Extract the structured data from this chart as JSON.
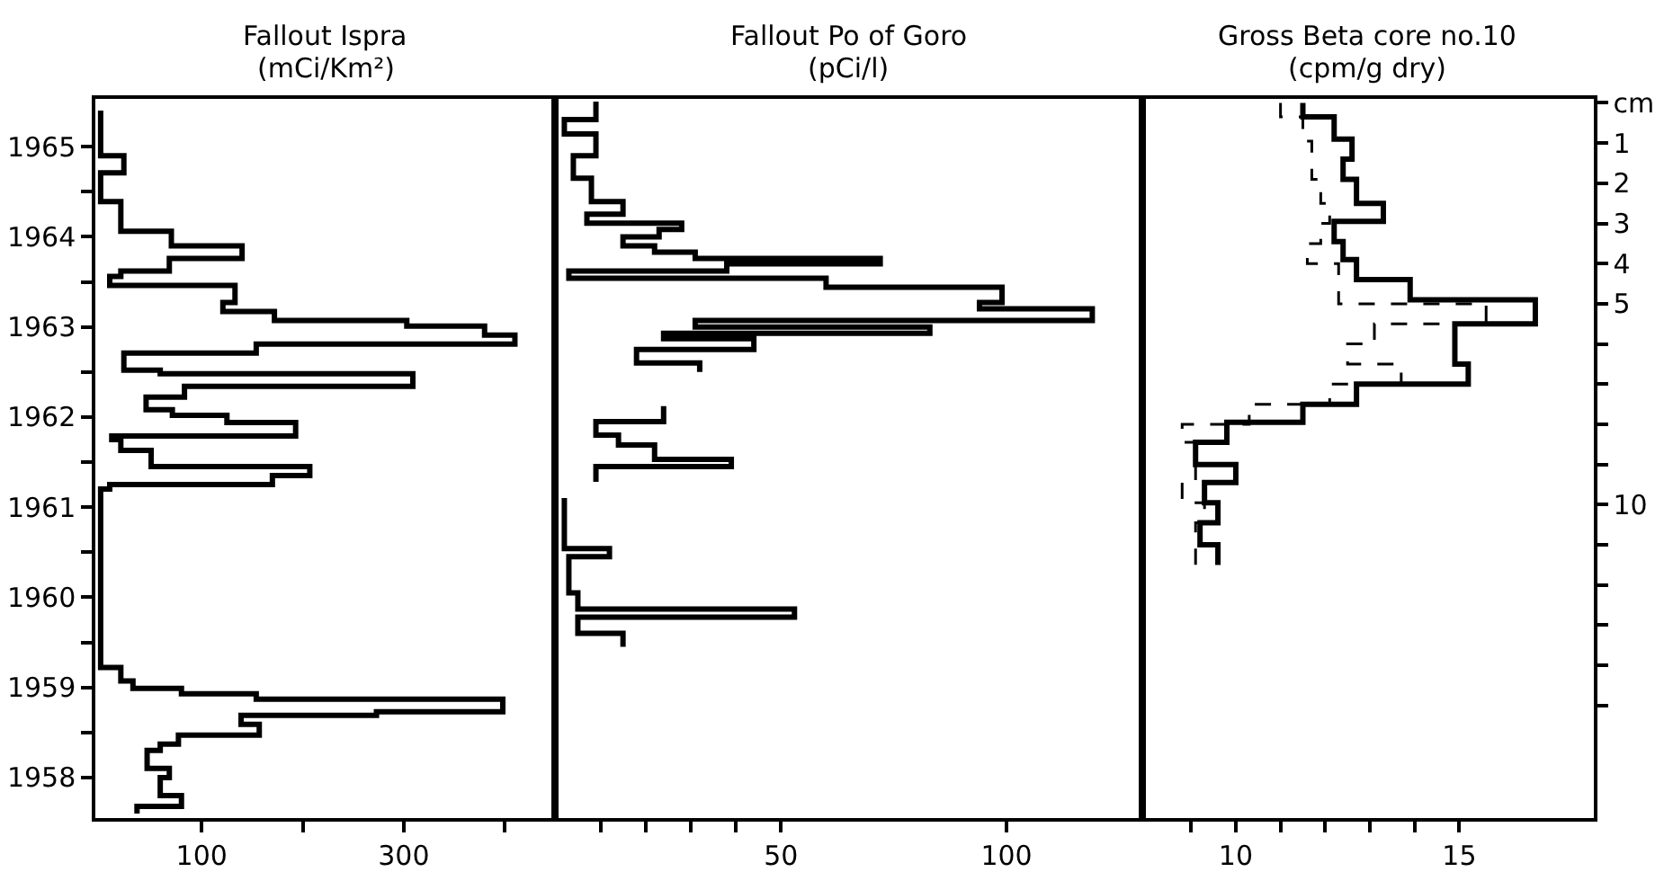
{
  "chart_data": [
    {
      "type": "step",
      "title": "Fallout Ispra",
      "subtitle": "(mCi/Km²)",
      "grid": false,
      "xlim": [
        -5,
        450
      ],
      "xticks": [
        100,
        {
          "value": 200,
          "label": null
        },
        300,
        {
          "value": 400,
          "label": null
        }
      ],
      "ylim": [
        1958.05,
        1966.03
      ],
      "yticks": [
        {
          "value": 1958.5,
          "label": "1958"
        },
        {
          "value": 1959,
          "label": null
        },
        {
          "value": 1959.5,
          "label": "1959"
        },
        {
          "value": 1960,
          "label": null
        },
        {
          "value": 1960.5,
          "label": "1960"
        },
        {
          "value": 1961,
          "label": null
        },
        {
          "value": 1961.5,
          "label": "1961"
        },
        {
          "value": 1962,
          "label": null
        },
        {
          "value": 1962.5,
          "label": "1962"
        },
        {
          "value": 1963,
          "label": null
        },
        {
          "value": 1963.5,
          "label": "1963"
        },
        {
          "value": 1964,
          "label": null
        },
        {
          "value": 1964.5,
          "label": "1964"
        },
        {
          "value": 1965,
          "label": null
        },
        {
          "value": 1965.5,
          "label": "1965"
        }
      ],
      "series": [
        {
          "color": "#000000",
          "line_style": "solid",
          "values": [
            1965.9,
            1965.4,
            1965.21,
            1964.89,
            1964.56,
            1964.4,
            1964.26,
            1964.12,
            1964.06,
            1963.96,
            1963.77,
            1963.67,
            1963.57,
            1963.51,
            1963.41,
            1963.31,
            1963.21,
            1963.02,
            1962.98,
            1962.84,
            1962.72,
            1962.58,
            1962.52,
            1962.44,
            1962.29,
            1962.25,
            1962.13,
            1961.95,
            1961.85,
            1961.75,
            1961.7,
            1959.72,
            1959.57,
            1959.49,
            1959.43,
            1959.37,
            1959.23,
            1959.19,
            1959.09,
            1958.97,
            1958.87,
            1958.8,
            1958.6,
            1958.5,
            1958.3,
            1958.18,
            1958.1
          ],
          "x": [
            0,
            23,
            0,
            20,
            70,
            140,
            68,
            20,
            9,
            133,
            121,
            172,
            303,
            380,
            410,
            154,
            23,
            59,
            309,
            83,
            45,
            71,
            125,
            193,
            11,
            20,
            50,
            207,
            170,
            9,
            0,
            20,
            32,
            80,
            154,
            398,
            273,
            139,
            157,
            77,
            59,
            46,
            68,
            59,
            80,
            36,
            36
          ]
        }
      ]
    },
    {
      "type": "step",
      "title": "Fallout Po of Goro",
      "subtitle": "(pCi/l)",
      "grid": false,
      "tick_labels": "x",
      "xlim": [
        0,
        130
      ],
      "xticks": [
        {
          "value": 10,
          "label": null
        },
        {
          "value": 20,
          "label": null
        },
        {
          "value": 30,
          "label": null
        },
        {
          "value": 40,
          "label": null
        },
        50,
        100
      ],
      "ylim": [
        1958.05,
        1966.03
      ],
      "series": [
        {
          "color": "#000000",
          "line_style": "solid",
          "values": [
            1966.0,
            1965.8,
            1965.64,
            1965.4,
            1965.15,
            1964.89,
            1964.75,
            1964.65,
            1964.58,
            1964.5,
            1964.4,
            1964.33,
            1964.26,
            1964.2,
            1964.12,
            1964.04,
            1963.94,
            1963.77,
            1963.7,
            1963.57,
            1963.5,
            1963.43,
            1963.37,
            1963.25,
            1963.1,
            1963.0,
            null,
            1962.62,
            1962.45,
            1962.3,
            1962.19,
            1962.03,
            1961.95,
            1961.78,
            null,
            1961.6,
            1961.04,
            1960.95,
            1960.55,
            1960.37,
            1960.28,
            1960.1,
            1959.95
          ],
          "x": [
            9,
            2,
            9,
            4,
            8,
            15,
            7,
            28,
            23,
            15,
            22,
            31,
            72,
            38,
            3,
            60,
            99,
            94,
            119,
            31,
            83,
            24,
            44,
            18,
            32,
            32,
            null,
            24,
            9,
            14,
            22,
            39,
            9,
            9,
            null,
            2,
            12,
            3,
            5,
            53,
            5,
            15,
            15
          ]
        }
      ]
    },
    {
      "type": "step",
      "title": "Gross Beta core no.10",
      "subtitle": "(cpm/g dry)",
      "grid": false,
      "xlim": [
        7.9,
        18
      ],
      "xticks": [
        {
          "value": 9,
          "label": null
        },
        10,
        {
          "value": 11,
          "label": null
        },
        {
          "value": 12,
          "label": null
        },
        {
          "value": 13,
          "label": null
        },
        {
          "value": 14,
          "label": null
        },
        15
      ],
      "y2lim": [
        17.8,
        -0.1
      ],
      "y2ticks": [
        {
          "value": 0,
          "label": "cm"
        },
        1,
        2,
        3,
        4,
        5,
        {
          "value": 6,
          "label": null
        },
        {
          "value": 7,
          "label": null
        },
        {
          "value": 8,
          "label": null
        },
        {
          "value": 9,
          "label": null
        },
        10,
        {
          "value": 11,
          "label": null
        },
        {
          "value": 12,
          "label": null
        },
        {
          "value": 13,
          "label": null
        },
        {
          "value": 14,
          "label": null
        },
        {
          "value": 15,
          "label": null
        }
      ],
      "series": [
        {
          "color": "#000000",
          "line_style": "solid",
          "axis": "y2",
          "values": [
            0,
            0.35,
            0.9,
            1.4,
            1.9,
            2.5,
            2.95,
            3.45,
            3.9,
            4.4,
            4.9,
            5.5,
            6.5,
            7.0,
            7.5,
            7.95,
            8.45,
            9.0,
            9.45,
            9.95,
            10.45,
            11.0,
            11.5
          ],
          "x": [
            11.5,
            12.2,
            12.6,
            12.4,
            12.7,
            13.3,
            12.2,
            12.4,
            12.7,
            13.9,
            16.7,
            14.9,
            15.2,
            12.7,
            11.5,
            9.8,
            9.1,
            10.0,
            9.3,
            9.6,
            9.2,
            9.6,
            9.6
          ]
        },
        {
          "color": "#000000",
          "line_style": "dashed",
          "axis": "y2",
          "values": [
            0,
            0.35,
            0.95,
            1.9,
            2.5,
            3.0,
            3.5,
            4.0,
            5.0,
            5.5,
            6.0,
            6.5,
            7.0,
            7.5,
            8.0,
            8.45,
            9.45,
            9.95,
            10.45,
            11.5
          ],
          "x": [
            11.0,
            11.5,
            11.7,
            11.9,
            12.1,
            11.9,
            11.6,
            12.3,
            15.6,
            13.1,
            12.5,
            13.7,
            12.1,
            10.3,
            8.8,
            9.1,
            8.8,
            9.3,
            9.1,
            9.1
          ]
        }
      ]
    }
  ]
}
